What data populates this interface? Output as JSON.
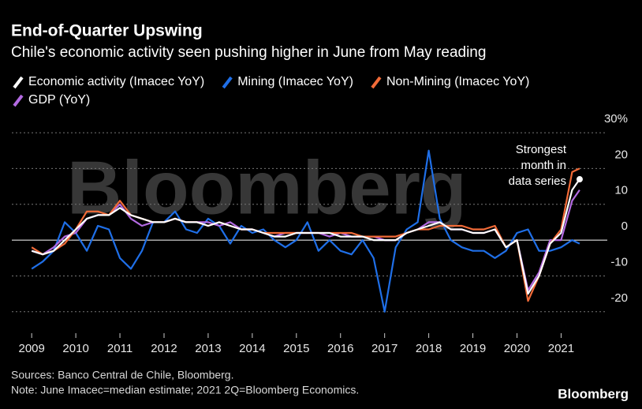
{
  "chart_data": {
    "type": "line",
    "title": "End-of-Quarter Upswing",
    "subtitle": "Chile's economic activity seen pushing higher in June from May reading",
    "watermark": "Bloomberg",
    "annotation": [
      "Strongest",
      "month in",
      "data series"
    ],
    "sources": "Sources: Banco Central de Chile, Bloomberg.",
    "note": "Note: June Imacec=median estimate; 2021 2Q=Bloomberg Economics.",
    "brand": "Bloomberg",
    "x": [
      2009,
      2009.25,
      2009.5,
      2009.75,
      2010,
      2010.25,
      2010.5,
      2010.75,
      2011,
      2011.25,
      2011.5,
      2011.75,
      2012,
      2012.25,
      2012.5,
      2012.75,
      2013,
      2013.25,
      2013.5,
      2013.75,
      2014,
      2014.25,
      2014.5,
      2014.75,
      2015,
      2015.25,
      2015.5,
      2015.75,
      2016,
      2016.25,
      2016.5,
      2016.75,
      2017,
      2017.25,
      2017.5,
      2017.75,
      2018,
      2018.25,
      2018.5,
      2018.75,
      2019,
      2019.25,
      2019.5,
      2019.75,
      2020,
      2020.25,
      2020.5,
      2020.75,
      2021,
      2021.25,
      2021.42
    ],
    "xlim": [
      2008.55,
      2021.6
    ],
    "xticks": [
      2009,
      2010,
      2011,
      2012,
      2013,
      2014,
      2015,
      2016,
      2017,
      2018,
      2019,
      2020,
      2021
    ],
    "ylim": [
      -26,
      32
    ],
    "yticks": [
      {
        "value": 30,
        "label": "30%"
      },
      20,
      10,
      0,
      -10,
      -20
    ],
    "series": [
      {
        "name": "Economic activity (Imacec YoY)",
        "color": "#ffffff",
        "values": [
          -3,
          -4,
          -3,
          0,
          3,
          6,
          7,
          7,
          9,
          7,
          6,
          5,
          5,
          6,
          5,
          5,
          4,
          5,
          4,
          3,
          3,
          2,
          1,
          1,
          2,
          2,
          2,
          2,
          1,
          1,
          1,
          0,
          0,
          0,
          2,
          3,
          4,
          5,
          3,
          3,
          2,
          2,
          3,
          -2,
          0,
          -15,
          -10,
          -1,
          2,
          14,
          17
        ]
      },
      {
        "name": "Mining (Imacec YoY)",
        "color": "#1f6fe8",
        "values": [
          -8,
          -6,
          -3,
          5,
          2,
          -3,
          4,
          3,
          -5,
          -8,
          -3,
          5,
          5,
          8,
          3,
          2,
          6,
          4,
          -1,
          4,
          2,
          3,
          0,
          -2,
          0,
          5,
          -3,
          0,
          -3,
          -4,
          0,
          -5,
          -20,
          -2,
          3,
          5,
          25,
          6,
          0,
          -2,
          -3,
          -3,
          -5,
          -3,
          2,
          3,
          -3,
          -3,
          -2,
          0,
          -1
        ]
      },
      {
        "name": "Non-Mining (Imacec YoY)",
        "color": "#f26b38",
        "values": [
          -2,
          -4,
          -3,
          -1,
          3,
          8,
          8,
          7,
          11,
          7,
          6,
          5,
          5,
          6,
          5,
          5,
          4,
          5,
          4,
          3,
          3,
          2,
          2,
          2,
          2,
          2,
          2,
          2,
          2,
          2,
          1,
          1,
          1,
          1,
          2,
          3,
          3,
          4,
          4,
          4,
          3,
          3,
          4,
          -2,
          0,
          -17,
          -10,
          -1,
          3,
          19,
          20
        ]
      },
      {
        "name": "GDP (YoY)",
        "color": "#b36ae2",
        "values": [
          -3,
          -4,
          -2,
          1,
          2,
          6,
          7,
          7,
          10,
          6,
          4,
          5,
          5,
          6,
          5,
          5,
          5,
          4,
          5,
          3,
          3,
          2,
          1,
          2,
          2,
          2,
          2,
          1,
          2,
          1,
          1,
          1,
          0,
          0,
          2,
          3,
          5,
          5,
          3,
          3,
          2,
          2,
          3,
          -2,
          0,
          -14,
          -9,
          0,
          0,
          11,
          14
        ]
      }
    ]
  }
}
